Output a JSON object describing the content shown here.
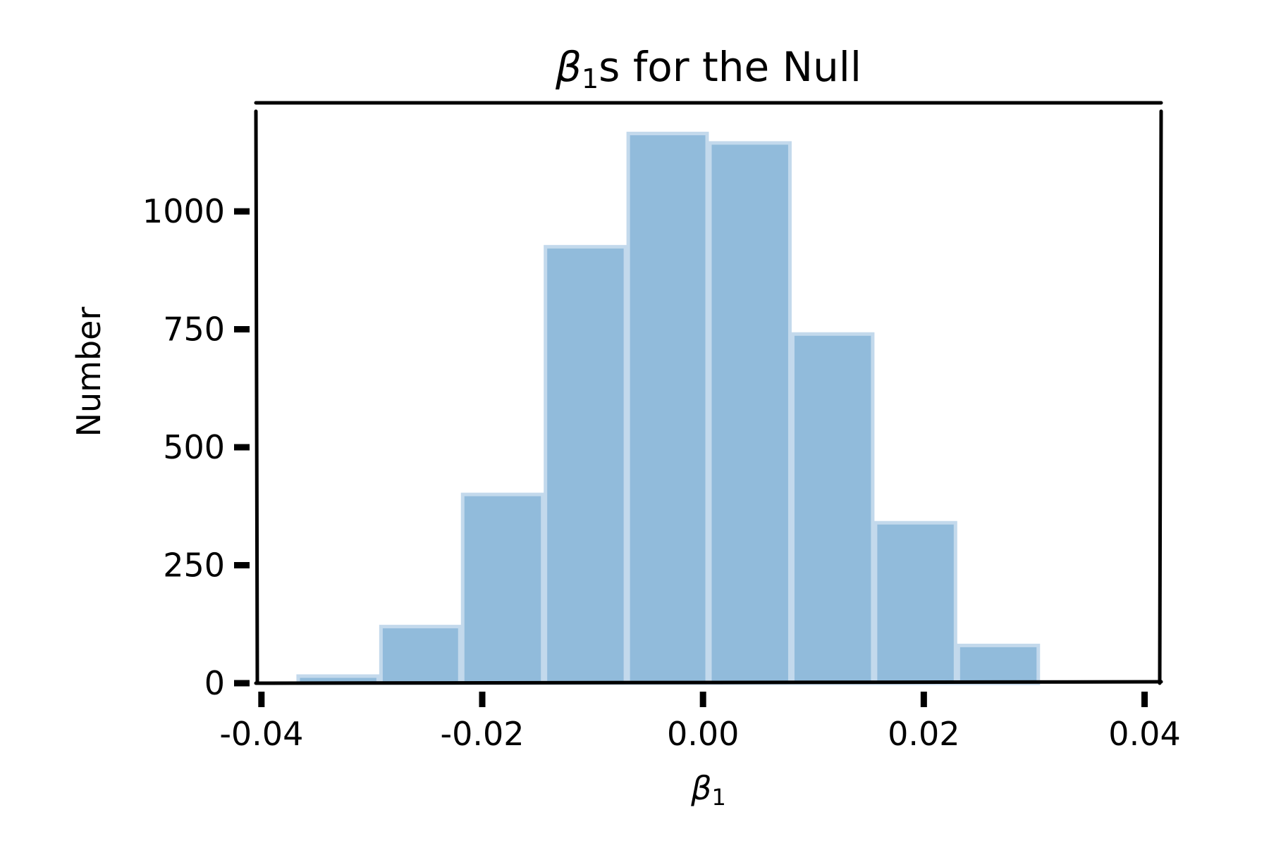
{
  "chart_data": {
    "type": "bar",
    "title": {
      "symbol": "β",
      "subscript": "1",
      "rest": "s for the Null"
    },
    "xlabel": {
      "symbol": "β",
      "subscript": "1"
    },
    "ylabel": "Number",
    "xlim": [
      -0.0405,
      0.0415
    ],
    "ylim": [
      0,
      1230
    ],
    "xticks": [
      -0.04,
      -0.02,
      0.0,
      0.02,
      0.04
    ],
    "xtick_labels": [
      "-0.04",
      "-0.02",
      "0.00",
      "0.02",
      "0.04"
    ],
    "yticks": [
      0,
      250,
      500,
      750,
      1000
    ],
    "ytick_labels": [
      "0",
      "250",
      "500",
      "750",
      "1000"
    ],
    "bin_edges": [
      -0.0368,
      -0.0293,
      -0.0219,
      -0.0144,
      -0.0069,
      0.0005,
      0.008,
      0.0155,
      0.023,
      0.0305
    ],
    "counts": [
      15,
      120,
      400,
      925,
      1165,
      1145,
      740,
      340,
      80
    ],
    "bar_color": "#91bbdb",
    "bar_edge_color": "#c3d9ec",
    "grid": false,
    "style": "xkcd"
  }
}
